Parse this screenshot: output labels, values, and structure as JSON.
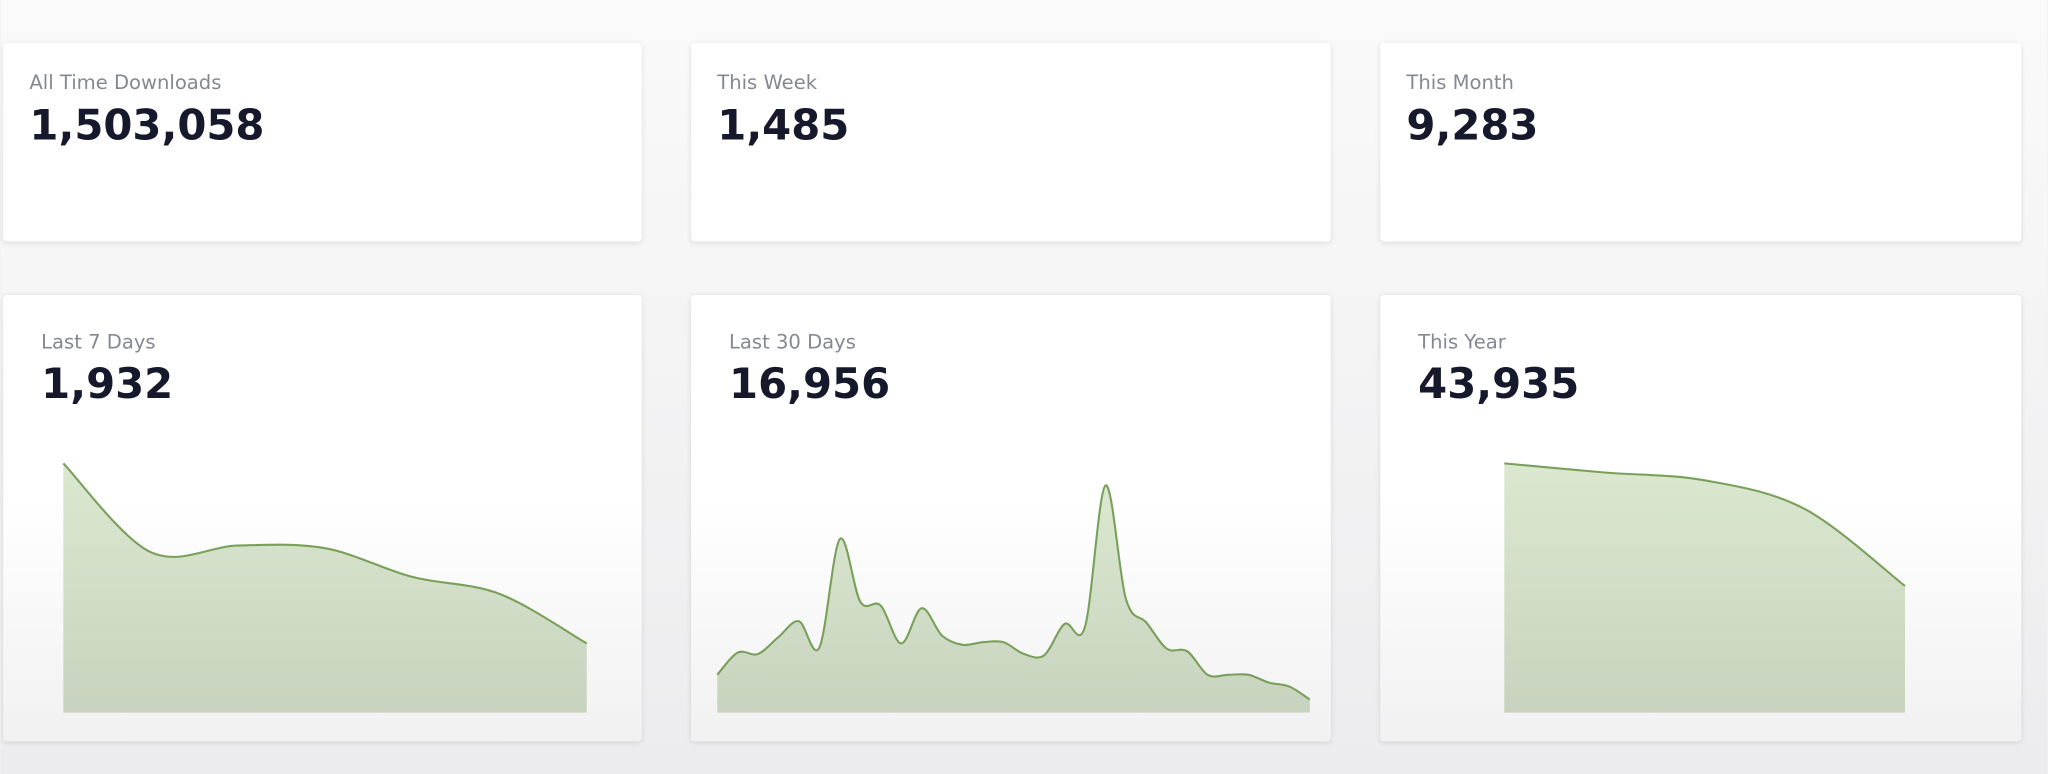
{
  "cards": [
    {
      "label": "All Time Downloads",
      "value": "1,503,058"
    },
    {
      "label": "This Week",
      "value": "1,485"
    },
    {
      "label": "This Month",
      "value": "9,283"
    }
  ],
  "chart_data": [
    {
      "type": "area",
      "title": "Last 7 Days",
      "total": "1,932",
      "values": [
        191,
        123,
        128,
        126,
        104,
        91,
        53
      ]
    },
    {
      "type": "area",
      "title": "Last 30 Days",
      "total": "16,956",
      "values": [
        29,
        46,
        45,
        58,
        70,
        50,
        133,
        85,
        82,
        53,
        80,
        59,
        52,
        54,
        54,
        45,
        44,
        68,
        66,
        174,
        87,
        69,
        49,
        47,
        29,
        29,
        29,
        23,
        20,
        10
      ]
    },
    {
      "type": "area",
      "title": "This Year",
      "total": "43,935",
      "values": [
        191,
        184,
        178,
        156,
        97
      ]
    }
  ]
}
